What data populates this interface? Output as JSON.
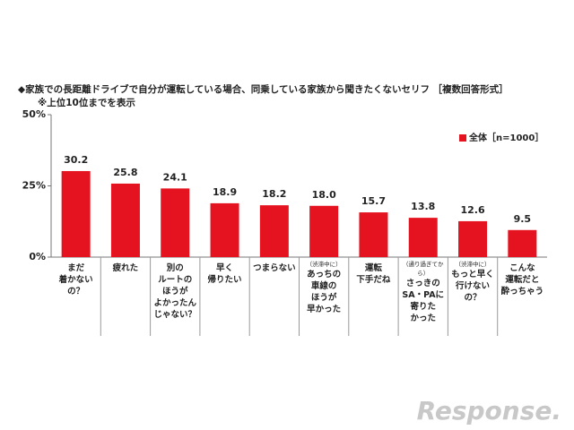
{
  "chart_data": {
    "type": "bar",
    "title": "◆家族での長距離ドライブで自分が運転している場合、同乗している家族から聞きたくないセリフ ［複数回答形式］",
    "subtitle": "※上位10位までを表示",
    "categories": [
      "まだ\n着かない\nの？",
      "疲れた",
      "別の\nルートの\nほうが\nよかったん\nじゃない？",
      "早く\n帰りたい",
      "つまらない",
      "あっちの\n車線の\nほうが\n早かった",
      "運転\n下手だね",
      "さっきの\nSA・PAに\n寄りた\nかった",
      "もっと早く\n行けない\nの？",
      "こんな\n運転だと\n酔っちゃう"
    ],
    "category_notes": [
      null,
      null,
      null,
      null,
      null,
      "（渋滞中に）",
      null,
      "（通り過ぎてから）",
      "（渋滞中に）",
      null
    ],
    "series": [
      {
        "name": "全体［n=1000］",
        "color": "#e5131f",
        "values": [
          30.2,
          25.8,
          24.1,
          18.9,
          18.2,
          18.0,
          15.7,
          13.8,
          12.6,
          9.5
        ],
        "value_labels": [
          "30.2",
          "25.8",
          "24.1",
          "18.9",
          "18.2",
          "18.0",
          "15.7",
          "13.8",
          "12.6",
          "9.5"
        ]
      }
    ],
    "ylim": [
      0,
      50
    ],
    "yticks": [
      {
        "value": 0,
        "label": "0%"
      },
      {
        "value": 25,
        "label": "25%"
      },
      {
        "value": 50,
        "label": "50%"
      }
    ],
    "grid": false,
    "legend": "upper-right",
    "watermark": "Response."
  }
}
